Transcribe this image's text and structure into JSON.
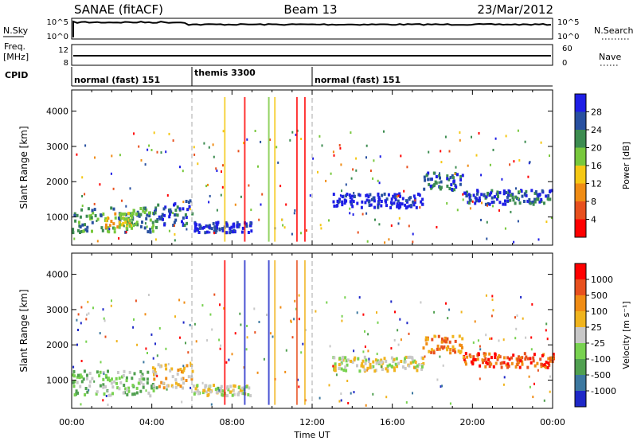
{
  "header": {
    "title_left": "SANAE (fitACF)",
    "title_center": "Beam 13",
    "title_right": "23/Mar/2012"
  },
  "top_panels": {
    "nsky_label": "N.Sky",
    "nsky_ticks": [
      "10^5",
      "10^0"
    ],
    "nsearch_label": "N.Search",
    "nsearch_ticks": [
      "10^5",
      "10^0"
    ],
    "freq_label": "Freq.",
    "freq_unit": "[MHz]",
    "freq_ticks": [
      "12",
      "8"
    ],
    "nave_label": "Nave",
    "nave_ticks": [
      "60",
      "0"
    ],
    "cpid_label": "CPID",
    "cpid_segments": [
      {
        "label": "normal (fast) 151",
        "start_hour": 0,
        "end_hour": 6
      },
      {
        "label": "themis 3300",
        "start_hour": 6,
        "end_hour": 12
      },
      {
        "label": "normal (fast) 151",
        "start_hour": 12,
        "end_hour": 24
      }
    ]
  },
  "chart_data": [
    {
      "type": "heatmap",
      "name": "power",
      "ylabel": "Slant Range [km]",
      "y_ticks": [
        "1000",
        "2000",
        "3000",
        "4000"
      ],
      "ylim": [
        200,
        4600
      ],
      "xlim": [
        0,
        24
      ],
      "x_ticks": [
        "00:00",
        "04:00",
        "08:00",
        "12:00",
        "16:00",
        "20:00",
        "00:00"
      ],
      "colorbar": {
        "label": "Power [dB]",
        "ticks": [
          "28",
          "24",
          "20",
          "16",
          "12",
          "8",
          "4"
        ],
        "colors": [
          "#ff0000",
          "#e8501e",
          "#f08c14",
          "#f5c814",
          "#78c83c",
          "#3c8c50",
          "#2850a0",
          "#1e1ee6"
        ]
      },
      "echo_regions": [
        {
          "t0": 0.0,
          "t1": 4.2,
          "r0": 600,
          "r1": 1300,
          "level": 5
        },
        {
          "t0": 1.6,
          "t1": 3.2,
          "r0": 700,
          "r1": 1200,
          "level": 3
        },
        {
          "t0": 4.0,
          "t1": 6.0,
          "r0": 800,
          "r1": 1500,
          "level": 6
        },
        {
          "t0": 6.0,
          "t1": 9.0,
          "r0": 600,
          "r1": 900,
          "level": 7
        },
        {
          "t0": 13.0,
          "t1": 17.5,
          "r0": 1300,
          "r1": 1700,
          "level": 7
        },
        {
          "t0": 17.5,
          "t1": 19.5,
          "r0": 1800,
          "r1": 2300,
          "level": 6
        },
        {
          "t0": 19.5,
          "t1": 24.0,
          "r0": 1400,
          "r1": 1800,
          "level": 6
        }
      ]
    },
    {
      "type": "heatmap",
      "name": "velocity",
      "ylabel": "Slant Range [km]",
      "y_ticks": [
        "1000",
        "2000",
        "3000",
        "4000"
      ],
      "ylim": [
        200,
        4600
      ],
      "xlim": [
        0,
        24
      ],
      "x_ticks": [
        "00:00",
        "04:00",
        "08:00",
        "12:00",
        "16:00",
        "20:00",
        "00:00"
      ],
      "xlabel": "Time UT",
      "colorbar": {
        "label": "Velocity [m s⁻¹]",
        "ticks": [
          "1000",
          "500",
          "100",
          "25",
          "-25",
          "-100",
          "-500",
          "-1000"
        ],
        "colors": [
          "#1e28c8",
          "#3c78a0",
          "#50a050",
          "#78d250",
          "#c8c8c8",
          "#f0b41e",
          "#f08c14",
          "#e8501e",
          "#ff0000"
        ]
      },
      "echo_regions": [
        {
          "t0": 0.0,
          "t1": 4.2,
          "r0": 600,
          "r1": 1300,
          "level": 3
        },
        {
          "t0": 4.0,
          "t1": 6.0,
          "r0": 800,
          "r1": 1500,
          "level": 5
        },
        {
          "t0": 6.0,
          "t1": 9.0,
          "r0": 600,
          "r1": 900,
          "level": 4
        },
        {
          "t0": 13.0,
          "t1": 17.5,
          "r0": 1300,
          "r1": 1700,
          "level": 4
        },
        {
          "t0": 17.5,
          "t1": 19.5,
          "r0": 1800,
          "r1": 2300,
          "level": 6
        },
        {
          "t0": 19.5,
          "t1": 24.0,
          "r0": 1400,
          "r1": 1800,
          "level": 7
        }
      ]
    }
  ]
}
